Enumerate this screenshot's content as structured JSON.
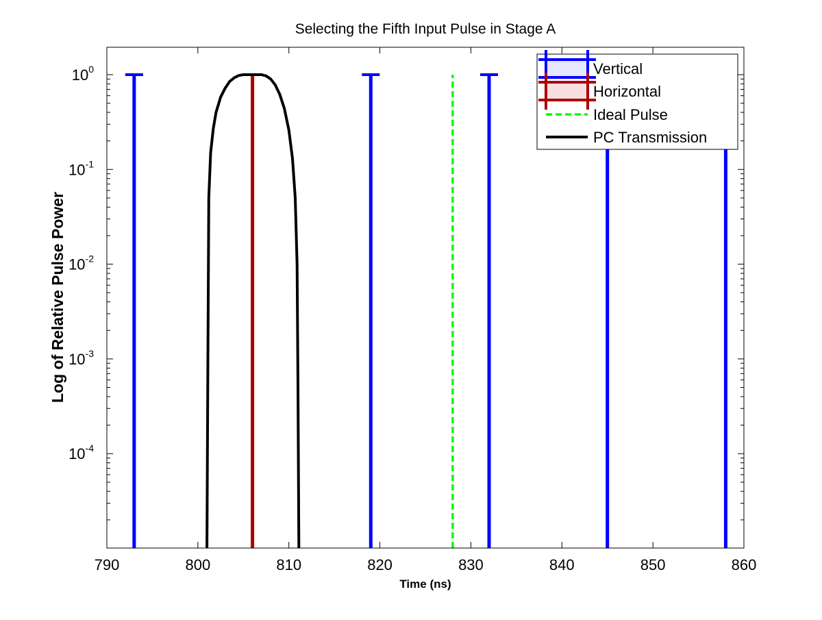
{
  "chart_data": {
    "type": "line",
    "title": "Selecting the Fifth Input Pulse in Stage A",
    "xlabel": "Time (ns)",
    "ylabel": "Log of Relative Pulse Power",
    "xlim": [
      790,
      860
    ],
    "ylim": [
      1e-05,
      2
    ],
    "yscale": "log",
    "grid": false,
    "legend_position": "top-right",
    "x_ticks": [
      "790",
      "800",
      "810",
      "820",
      "830",
      "840",
      "850",
      "860"
    ],
    "y_ticks": [
      {
        "value": 1,
        "base": "10",
        "exp": "0"
      },
      {
        "value": 0.1,
        "base": "10",
        "exp": "-1"
      },
      {
        "value": 0.01,
        "base": "10",
        "exp": "-2"
      },
      {
        "value": 0.001,
        "base": "10",
        "exp": "-3"
      },
      {
        "value": 0.0001,
        "base": "10",
        "exp": "-4"
      }
    ],
    "series": [
      {
        "name": "Vertical",
        "color": "#0000ff",
        "style": "impulse-plus",
        "x": [
          793,
          819,
          832,
          845,
          858
        ],
        "y": [
          1,
          1,
          1,
          1,
          1
        ]
      },
      {
        "name": "Horizontal",
        "color": "#b00000",
        "style": "impulse-plus",
        "x": [
          806
        ],
        "y": [
          1
        ]
      },
      {
        "name": "Ideal Pulse",
        "color": "#00ff00",
        "style": "dashed-impulse",
        "x": [
          828
        ],
        "y": [
          1
        ]
      },
      {
        "name": "PC Transmission",
        "color": "#000000",
        "style": "line",
        "x": [
          801.0,
          801.1,
          801.2,
          801.4,
          801.7,
          802.0,
          802.5,
          803.0,
          803.5,
          804.0,
          804.5,
          805.0,
          805.5,
          806.0,
          806.5,
          807.0,
          807.5,
          808.0,
          808.5,
          809.0,
          809.5,
          810.0,
          810.4,
          810.7,
          810.9,
          811.0,
          811.1
        ],
        "y": [
          1e-05,
          0.001,
          0.05,
          0.15,
          0.27,
          0.4,
          0.58,
          0.72,
          0.85,
          0.93,
          0.98,
          1.0,
          1.0,
          1.0,
          1.0,
          1.0,
          0.97,
          0.9,
          0.78,
          0.62,
          0.44,
          0.26,
          0.13,
          0.05,
          0.01,
          0.0005,
          1e-05
        ]
      }
    ]
  }
}
